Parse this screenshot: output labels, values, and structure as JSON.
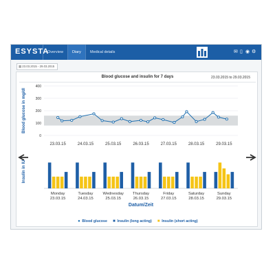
{
  "app": {
    "brand": "ESYSTA",
    "nav": [
      "Overview",
      "Diary",
      "Medical details"
    ],
    "active_nav": "Diary",
    "icons": [
      "user-group-icon",
      "mail-icon",
      "phone-icon",
      "help-icon",
      "settings-icon"
    ]
  },
  "date_filter": {
    "value": "23.03.2015 - 29.03.2015"
  },
  "panel": {
    "title": "Blood glucose and insulin for 7 days",
    "range": "23.03.2015 to 29.03.2015"
  },
  "legend": [
    "Blood glucose",
    "Insulin (long acting)",
    "Insulin (short acting)"
  ],
  "colors": {
    "brand": "#1c5ea6",
    "glucose_line": "#1f6fb0",
    "insulin_long": "#1f5fa6",
    "insulin_short": "#f5c416",
    "target_band": "#d9dcde"
  },
  "chart_data": [
    {
      "type": "line",
      "ylabel": "Blood glucose in mg/dl",
      "ylim": [
        0,
        400
      ],
      "yticks": [
        0,
        100,
        200,
        300,
        400
      ],
      "target_range": [
        80,
        160
      ],
      "x_labels": [
        "23.03.15",
        "24.03.15",
        "25.03.15",
        "26.03.15",
        "27.03.15",
        "28.03.15",
        "29.03.15"
      ],
      "series": [
        {
          "name": "Blood glucose",
          "x": [
            0.0,
            0.15,
            0.5,
            0.8,
            1.3,
            1.6,
            2.0,
            2.3,
            2.6,
            3.0,
            3.25,
            3.5,
            3.8,
            4.2,
            4.5,
            4.65,
            5.0,
            5.3,
            5.6,
            5.8,
            6.1
          ],
          "values": [
            145,
            118,
            122,
            152,
            175,
            120,
            108,
            135,
            112,
            122,
            110,
            142,
            128,
            105,
            150,
            192,
            112,
            130,
            185,
            148,
            132
          ]
        }
      ]
    },
    {
      "type": "bar",
      "ylabel": "Insulin in IU",
      "categories": [
        [
          "Monday",
          "23.03.15"
        ],
        [
          "Tuesday",
          "24.03.15"
        ],
        [
          "Wednesday",
          "25.03.15"
        ],
        [
          "Thursday",
          "26.03.15"
        ],
        [
          "Friday",
          "27.03.15"
        ],
        [
          "Saturday",
          "28.03.15"
        ],
        [
          "Sunday",
          "29.03.15"
        ]
      ],
      "xlabel": "Datum/Zeit",
      "ylim": [
        0,
        24
      ],
      "series": [
        {
          "name": "Insulin (long acting)",
          "values": [
            22,
            22,
            22,
            22,
            22,
            22,
            14
          ]
        },
        {
          "name": "Insulin (short acting)",
          "values": [
            10,
            10,
            10,
            10,
            10,
            10,
            22
          ]
        },
        {
          "name": "Insulin (short acting)",
          "values": [
            10,
            10,
            10,
            10,
            10,
            10,
            17
          ]
        },
        {
          "name": "Insulin (short acting)",
          "values": [
            10,
            10,
            10,
            10,
            10,
            10,
            12
          ]
        },
        {
          "name": "Insulin (long acting)",
          "values": [
            14,
            14,
            14,
            14,
            14,
            14,
            14
          ]
        }
      ]
    }
  ]
}
